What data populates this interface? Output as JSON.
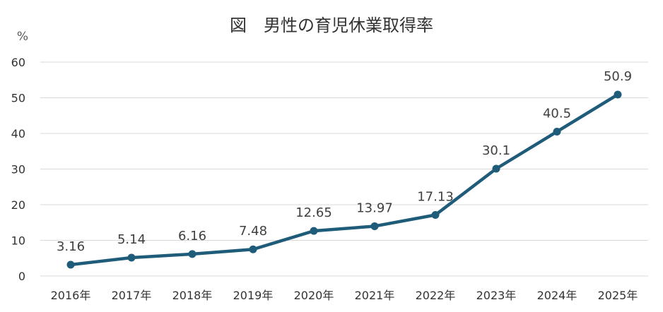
{
  "chart_data": {
    "type": "line",
    "title": "図　男性の育児休業取得率",
    "ylabel": "%",
    "xlabel": "",
    "ylim": [
      0,
      60
    ],
    "yticks": [
      0,
      10,
      20,
      30,
      40,
      50,
      60
    ],
    "grid": true,
    "legend": "none",
    "categories": [
      "2016年",
      "2017年",
      "2018年",
      "2019年",
      "2020年",
      "2021年",
      "2022年",
      "2023年",
      "2024年",
      "2025年"
    ],
    "series": [
      {
        "values": [
          3.16,
          5.14,
          6.16,
          7.48,
          12.65,
          13.97,
          17.13,
          30.1,
          40.5,
          50.9
        ],
        "labels": [
          "3.16",
          "5.14",
          "6.16",
          "7.48",
          "12.65",
          "13.97",
          "17.13",
          "30.1",
          "40.5",
          "50.9"
        ],
        "color": "#1f5c7a"
      }
    ]
  }
}
